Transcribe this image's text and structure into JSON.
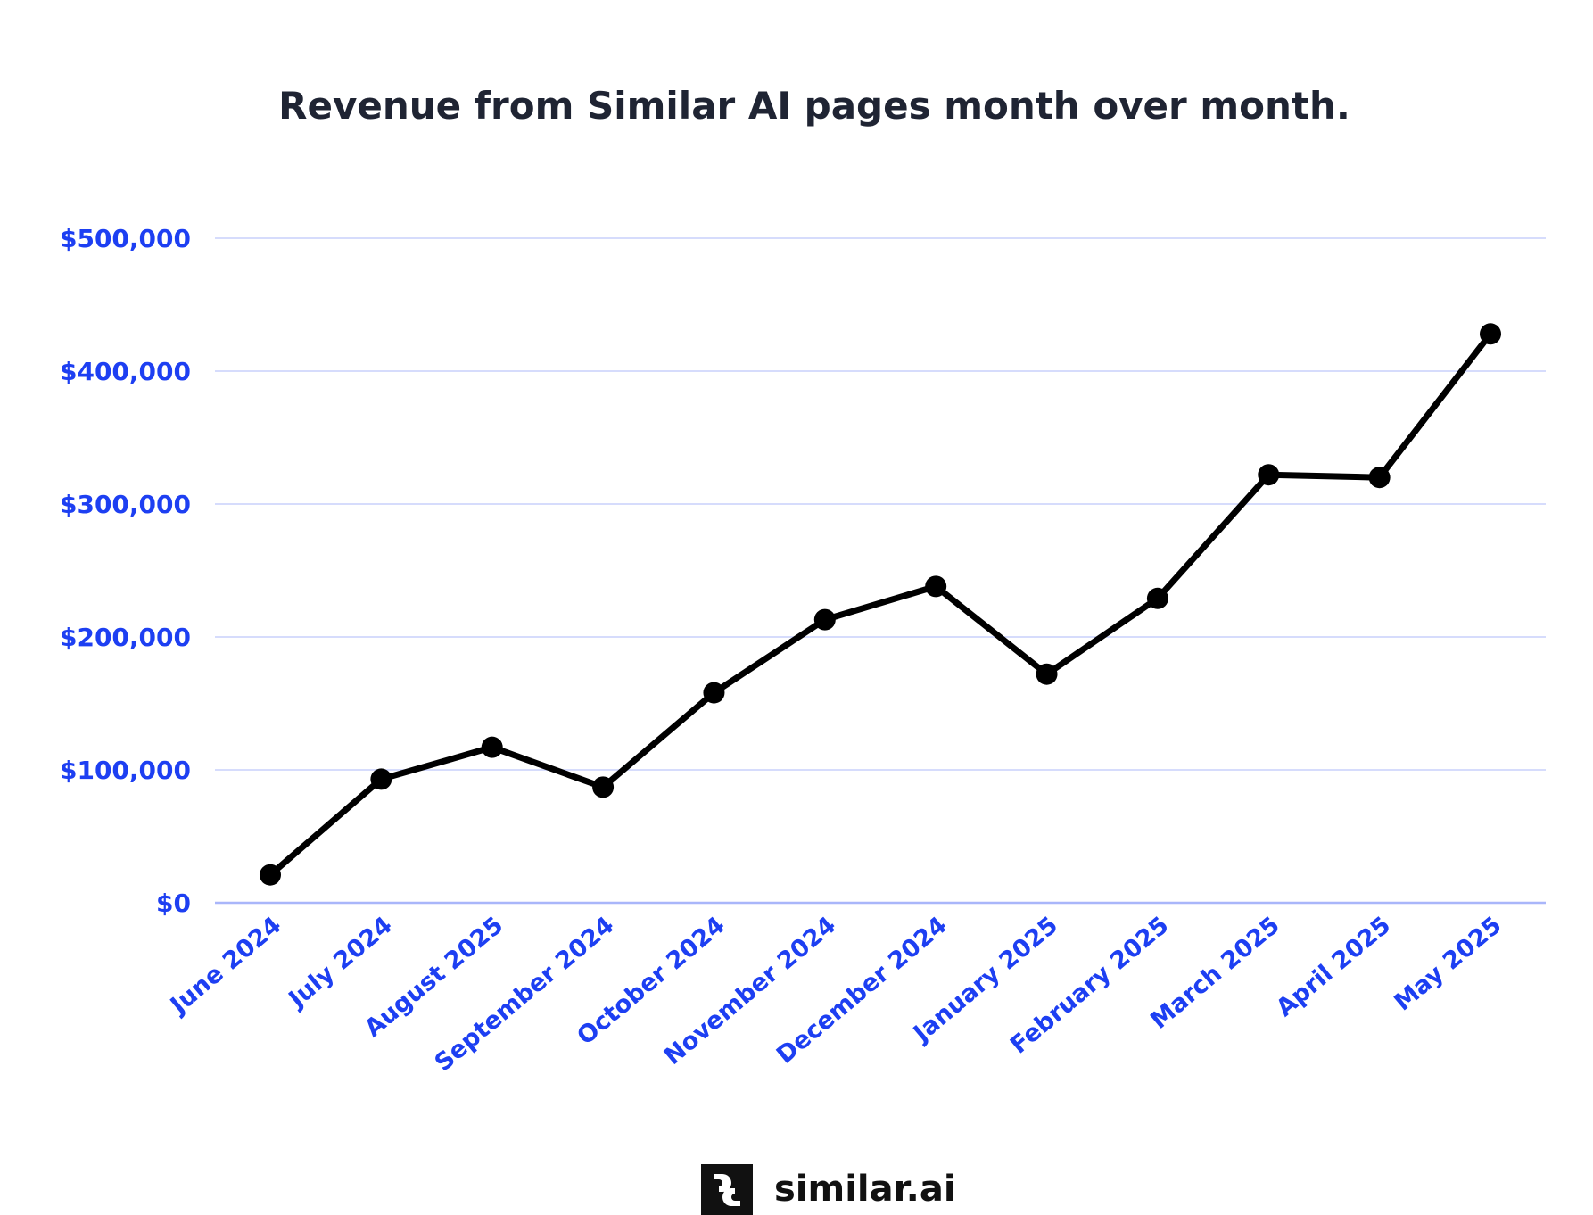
{
  "chart_data": {
    "type": "line",
    "title": "Revenue from Similar AI pages month over month.",
    "xlabel": "",
    "ylabel": "",
    "categories": [
      "June 2024",
      "July 2024",
      "August 2025",
      "September 2024",
      "October 2024",
      "November 2024",
      "December 2024",
      "January 2025",
      "February 2025",
      "March 2025",
      "April 2025",
      "May 2025"
    ],
    "values": [
      21000,
      93000,
      117000,
      87000,
      158000,
      213000,
      238000,
      172000,
      229000,
      322000,
      320000,
      428000
    ],
    "ylim": [
      0,
      500000
    ],
    "yticks": [
      0,
      100000,
      200000,
      300000,
      400000,
      500000
    ],
    "ytick_labels": [
      "$0",
      "$100,000",
      "$200,000",
      "$300,000",
      "$400,000",
      "$500,000"
    ],
    "grid": "horizontal",
    "legend": "none",
    "colors": {
      "line": "#000000",
      "ticks": "#1d3ff2",
      "grid": "#c9d1fb",
      "title": "#1f2433"
    }
  },
  "branding": {
    "logo_text": "similar.ai"
  }
}
